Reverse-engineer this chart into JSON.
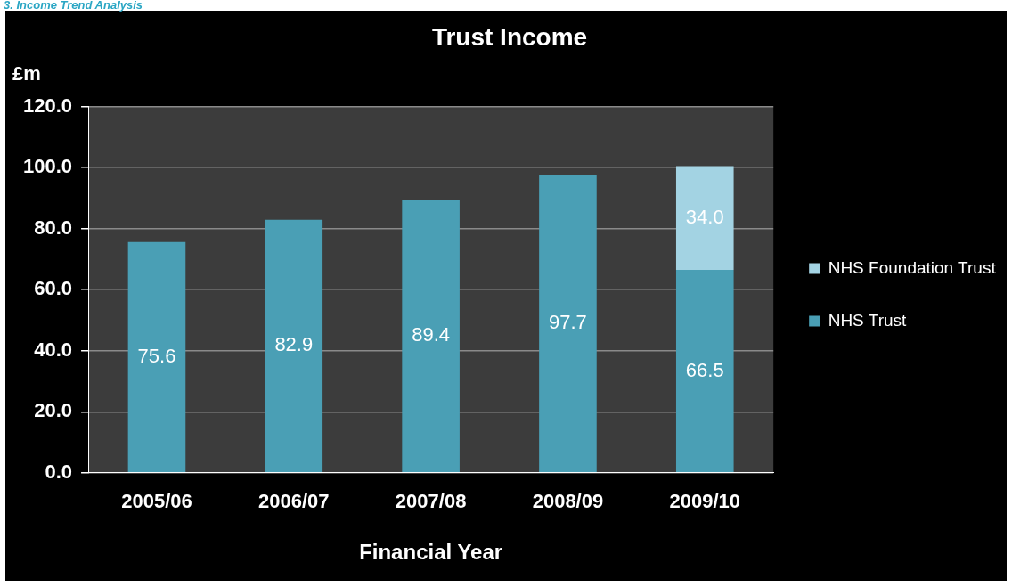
{
  "chart_data": {
    "type": "bar",
    "title": "Trust Income",
    "xlabel": "Financial Year",
    "ylabel": "£m",
    "annotations": [
      "3. Income Trend Analysis"
    ],
    "categories": [
      "2005/06",
      "2006/07",
      "2007/08",
      "2008/09",
      "2009/10"
    ],
    "series": [
      {
        "name": "NHS Trust",
        "color": "#4a9fb5",
        "values": [
          75.6,
          82.9,
          89.4,
          97.7,
          66.5
        ],
        "value_labels": [
          "75.6",
          "82.9",
          "89.4",
          "97.7",
          "66.5"
        ]
      },
      {
        "name": "NHS Foundation Trust",
        "color": "#a3d3e3",
        "values": [
          null,
          null,
          null,
          null,
          34.0
        ],
        "value_labels": [
          null,
          null,
          null,
          null,
          "34.0"
        ]
      }
    ],
    "stacked": true,
    "ylim": [
      0,
      120
    ],
    "yticks": [
      {
        "value": 0,
        "label": "0.0"
      },
      {
        "value": 20,
        "label": "20.0"
      },
      {
        "value": 40,
        "label": "40.0"
      },
      {
        "value": 60,
        "label": "60.0"
      },
      {
        "value": 80,
        "label": "80.0"
      },
      {
        "value": 100,
        "label": "100.0"
      },
      {
        "value": 120,
        "label": "120.0"
      }
    ],
    "grid": "y",
    "legend": "right"
  }
}
